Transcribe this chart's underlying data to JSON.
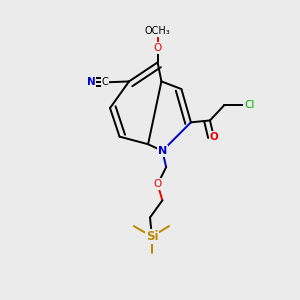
{
  "background_color": "#ebebeb",
  "atom_colors": {
    "C": "#000000",
    "N": "#0000cc",
    "O": "#ee0000",
    "Cl": "#00aa00",
    "Si": "#bb8800"
  },
  "bond_color": "#000000",
  "bond_width": 1.4,
  "figsize": [
    3.0,
    3.0
  ],
  "dpi": 100
}
